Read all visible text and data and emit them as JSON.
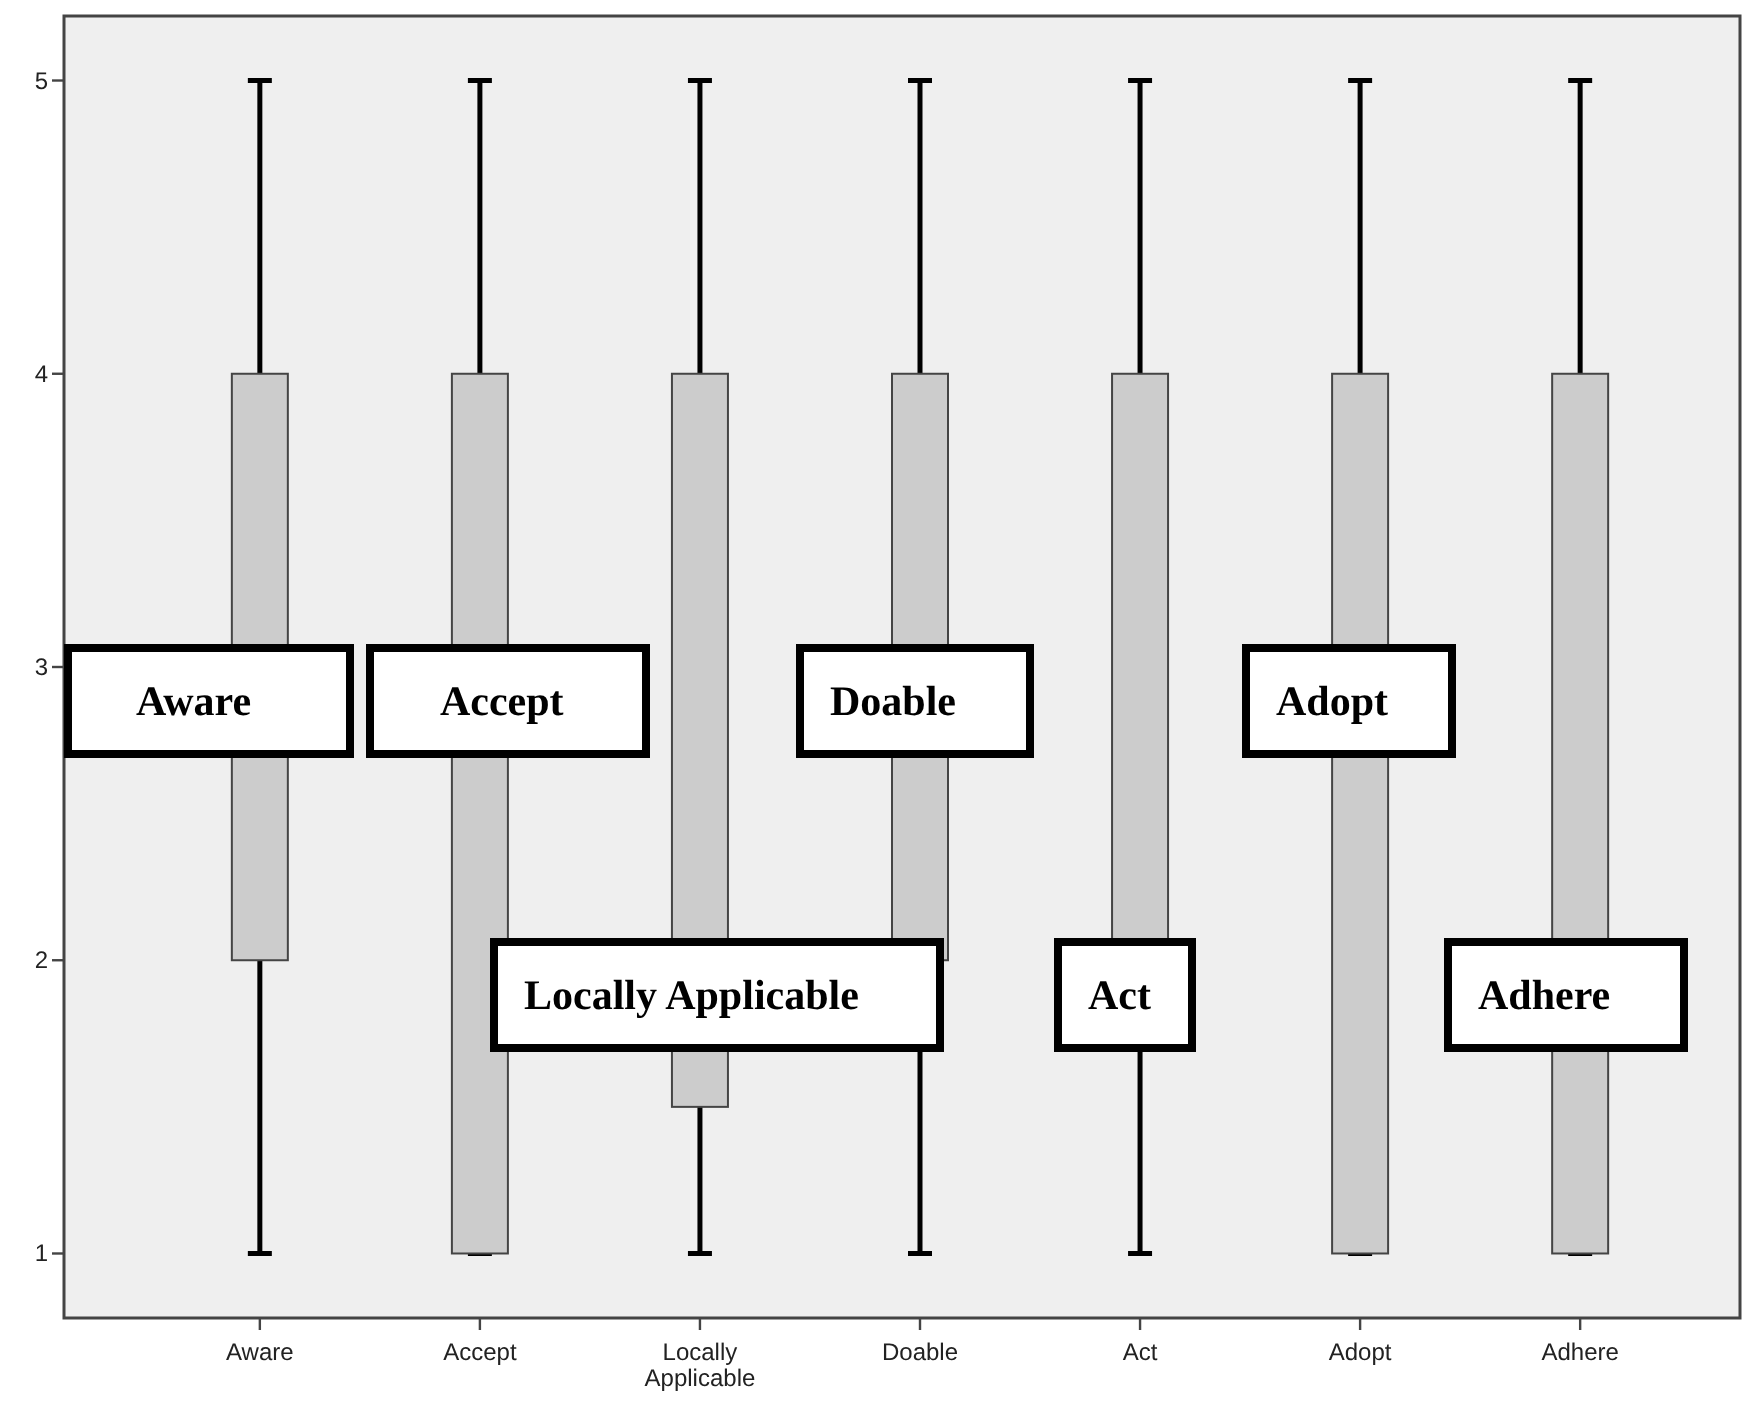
{
  "chart_data": {
    "type": "box",
    "categories": [
      "Aware",
      "Accept",
      "Locally Applicable",
      "Doable",
      "Act",
      "Adopt",
      "Adhere"
    ],
    "color": "#cccccc",
    "boxes": [
      {
        "low": 1,
        "q1": 2,
        "median": null,
        "q3": 4,
        "high": 5
      },
      {
        "low": 1,
        "q1": 1,
        "median": null,
        "q3": 4,
        "high": 5
      },
      {
        "low": 1,
        "q1": 1.5,
        "median": null,
        "q3": 4,
        "high": 5
      },
      {
        "low": 1,
        "q1": 2,
        "median": null,
        "q3": 4,
        "high": 5
      },
      {
        "low": 1,
        "q1": 2,
        "median": null,
        "q3": 4,
        "high": 5
      },
      {
        "low": 1,
        "q1": 1,
        "median": null,
        "q3": 4,
        "high": 5
      },
      {
        "low": 1,
        "q1": 1,
        "median": null,
        "q3": 4,
        "high": 5
      }
    ],
    "ylim": [
      0.78,
      5.22
    ],
    "yticks": [
      1,
      2,
      3,
      4,
      5
    ],
    "annotations": [
      "Aware",
      "Accept",
      "Locally Applicable",
      "Doable",
      "Act",
      "Adopt",
      "Adhere"
    ]
  }
}
